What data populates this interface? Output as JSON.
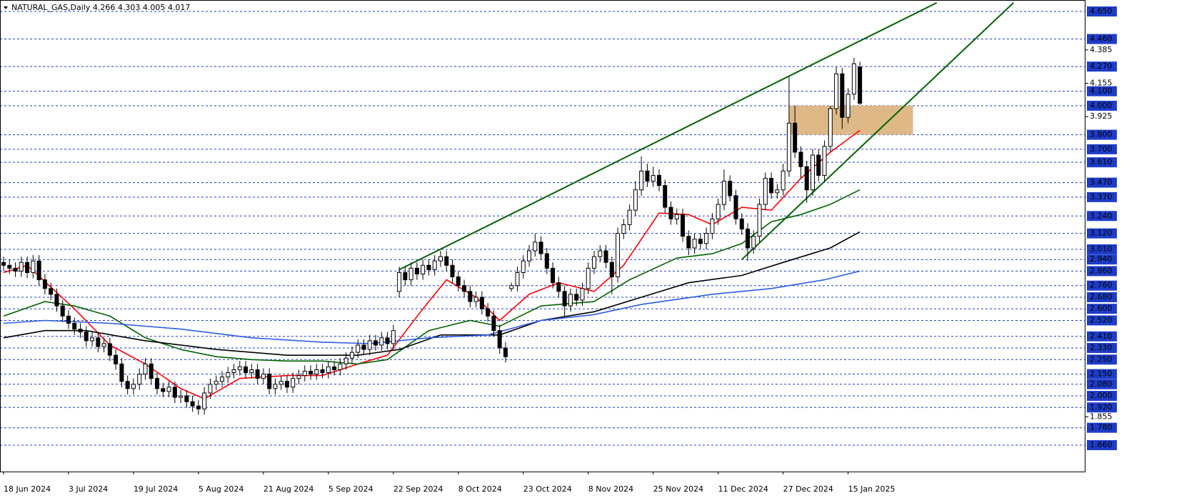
{
  "chart_data": {
    "type": "candlestick",
    "title": "NATURAL_GAS,Daily  4.266 4.303 4.005 4.017",
    "categories": [
      "18 Jun 2024",
      null,
      null,
      null,
      null,
      null,
      null,
      null,
      null,
      null,
      null,
      "3 Jul 2024",
      null,
      null,
      null,
      null,
      null,
      null,
      null,
      null,
      null,
      null,
      "19 Jul 2024",
      null,
      null,
      null,
      null,
      null,
      null,
      null,
      null,
      null,
      null,
      "5 Aug 2024",
      null,
      null,
      null,
      null,
      null,
      null,
      null,
      null,
      null,
      null,
      "21 Aug 2024",
      null,
      null,
      null,
      null,
      null,
      null,
      null,
      null,
      null,
      null,
      "5 Sep 2024",
      null,
      null,
      null,
      null,
      null,
      null,
      null,
      null,
      null,
      null,
      "22 Sep 2024",
      null,
      null,
      null,
      null,
      null,
      null,
      null,
      null,
      null,
      null,
      "8 Oct 2024",
      null,
      null,
      null,
      null,
      null,
      null,
      null,
      null,
      null,
      null,
      "23 Oct 2024",
      null,
      null,
      null,
      null,
      null,
      null,
      null,
      null,
      null,
      null,
      "8 Nov 2024",
      null,
      null,
      null,
      null,
      null,
      null,
      null,
      null,
      null,
      null,
      "25 Nov 2024",
      null,
      null,
      null,
      null,
      null,
      null,
      null,
      null,
      null,
      null,
      "11 Dec 2024",
      null,
      null,
      null,
      null,
      null,
      null,
      null,
      null,
      null,
      null,
      "27 Dec 2024",
      null,
      null,
      null,
      null,
      null,
      null,
      null,
      null,
      null,
      null,
      "15 Jan 2025",
      null,
      null
    ],
    "open": [
      2.92,
      2.9,
      2.88,
      2.86,
      2.92,
      2.85,
      2.93,
      2.8,
      2.74,
      2.7,
      2.62,
      2.55,
      2.5,
      2.46,
      2.44,
      2.38,
      2.4,
      2.34,
      2.36,
      2.28,
      2.22,
      2.1,
      2.05,
      2.08,
      2.15,
      2.22,
      2.12,
      2.05,
      2.03,
      2.06,
      1.99,
      2.0,
      1.96,
      1.93,
      1.91,
      2.02,
      2.08,
      2.1,
      2.13,
      2.16,
      2.18,
      2.2,
      2.16,
      2.18,
      2.12,
      2.15,
      2.05,
      2.08,
      2.1,
      2.06,
      2.12,
      2.14,
      2.17,
      2.15,
      2.18,
      2.16,
      2.2,
      2.18,
      2.22,
      2.26,
      2.3,
      2.35,
      2.32,
      2.38,
      2.35,
      2.4,
      2.36,
      2.72,
      2.85,
      2.8,
      2.88,
      2.84,
      2.9,
      2.87,
      2.93,
      2.96,
      2.9,
      2.82,
      2.76,
      2.72,
      2.65,
      2.68,
      2.6,
      2.55,
      2.45,
      2.33,
      2.74,
      2.76,
      2.85,
      2.93,
      3.0,
      3.06,
      2.98,
      2.88,
      2.78,
      2.72,
      2.62,
      2.7,
      2.66,
      2.74,
      2.88,
      2.96,
      3.0,
      2.92,
      2.82,
      3.12,
      3.18,
      3.28,
      3.42,
      3.55,
      3.48,
      3.52,
      3.45,
      3.3,
      3.22,
      3.25,
      3.1,
      3.02,
      3.08,
      3.05,
      3.12,
      3.22,
      3.32,
      3.48,
      3.38,
      3.22,
      3.15,
      3.02,
      3.1,
      3.32,
      3.5,
      3.4,
      3.42,
      3.55,
      3.88,
      3.68,
      3.58,
      3.42,
      3.66,
      3.52,
      3.72,
      3.98,
      4.22,
      3.92,
      4.08,
      4.266
    ],
    "high": [
      2.96,
      2.94,
      2.92,
      2.96,
      2.96,
      2.97,
      2.97,
      2.84,
      2.78,
      2.74,
      2.66,
      2.59,
      2.54,
      2.5,
      2.48,
      2.44,
      2.44,
      2.4,
      2.4,
      2.32,
      2.26,
      2.14,
      2.12,
      2.19,
      2.26,
      2.26,
      2.16,
      2.09,
      2.1,
      2.1,
      2.04,
      2.04,
      2.0,
      1.97,
      2.06,
      2.12,
      2.14,
      2.17,
      2.2,
      2.22,
      2.24,
      2.24,
      2.22,
      2.22,
      2.19,
      2.19,
      2.12,
      2.14,
      2.14,
      2.16,
      2.18,
      2.21,
      2.21,
      2.22,
      2.22,
      2.24,
      2.24,
      2.26,
      2.3,
      2.34,
      2.39,
      2.39,
      2.42,
      2.42,
      2.44,
      2.44,
      2.49,
      2.89,
      2.89,
      2.92,
      2.92,
      2.94,
      2.94,
      2.97,
      3.0,
      3.0,
      2.94,
      2.86,
      2.8,
      2.76,
      2.72,
      2.72,
      2.64,
      2.59,
      2.49,
      2.37,
      2.78,
      2.89,
      2.97,
      3.04,
      3.12,
      3.1,
      3.02,
      2.92,
      2.82,
      2.76,
      2.74,
      2.74,
      2.78,
      2.92,
      3.0,
      3.04,
      3.04,
      2.96,
      3.16,
      3.22,
      3.32,
      3.48,
      3.65,
      3.6,
      3.58,
      3.56,
      3.49,
      3.34,
      3.29,
      3.29,
      3.14,
      3.12,
      3.12,
      3.16,
      3.26,
      3.36,
      3.56,
      3.52,
      3.42,
      3.26,
      3.19,
      3.14,
      3.36,
      3.54,
      3.54,
      3.46,
      3.6,
      4.2,
      4.0,
      3.72,
      3.62,
      3.7,
      3.7,
      3.76,
      4.0,
      4.27,
      4.26,
      4.12,
      4.33,
      4.303
    ],
    "low": [
      2.86,
      2.84,
      2.82,
      2.82,
      2.81,
      2.81,
      2.76,
      2.7,
      2.66,
      2.58,
      2.51,
      2.46,
      2.42,
      2.4,
      2.34,
      2.34,
      2.3,
      2.3,
      2.24,
      2.18,
      2.06,
      2.01,
      2.01,
      2.04,
      2.11,
      2.08,
      2.01,
      1.99,
      1.99,
      1.95,
      1.95,
      1.92,
      1.89,
      1.87,
      1.87,
      1.98,
      2.04,
      2.06,
      2.09,
      2.12,
      2.14,
      2.12,
      2.12,
      2.08,
      2.08,
      2.01,
      2.01,
      2.04,
      2.02,
      2.02,
      2.08,
      2.1,
      2.11,
      2.11,
      2.12,
      2.12,
      2.14,
      2.14,
      2.18,
      2.22,
      2.26,
      2.28,
      2.28,
      2.31,
      2.31,
      2.32,
      2.32,
      2.68,
      2.76,
      2.76,
      2.8,
      2.8,
      2.83,
      2.83,
      2.89,
      2.86,
      2.78,
      2.72,
      2.68,
      2.61,
      2.61,
      2.56,
      2.51,
      2.41,
      2.29,
      2.23,
      2.72,
      2.72,
      2.81,
      2.89,
      2.96,
      2.94,
      2.84,
      2.74,
      2.68,
      2.55,
      2.58,
      2.62,
      2.62,
      2.7,
      2.84,
      2.92,
      2.88,
      2.7,
      2.78,
      3.08,
      3.14,
      3.24,
      3.38,
      3.44,
      3.44,
      3.41,
      3.26,
      3.18,
      3.18,
      3.06,
      2.97,
      2.98,
      3.01,
      3.01,
      3.08,
      3.18,
      3.28,
      3.34,
      3.18,
      3.11,
      2.93,
      2.98,
      3.06,
      3.28,
      3.36,
      3.36,
      3.38,
      3.51,
      3.64,
      3.5,
      3.33,
      3.38,
      3.48,
      3.48,
      3.68,
      3.94,
      3.84,
      3.88,
      4.04,
      4.005
    ],
    "close": [
      2.9,
      2.88,
      2.86,
      2.92,
      2.85,
      2.93,
      2.8,
      2.74,
      2.7,
      2.62,
      2.55,
      2.5,
      2.46,
      2.44,
      2.38,
      2.4,
      2.34,
      2.36,
      2.28,
      2.22,
      2.1,
      2.05,
      2.08,
      2.15,
      2.22,
      2.12,
      2.05,
      2.03,
      2.06,
      1.99,
      2.0,
      1.96,
      1.93,
      1.91,
      2.02,
      2.08,
      2.1,
      2.13,
      2.16,
      2.18,
      2.2,
      2.16,
      2.18,
      2.12,
      2.15,
      2.05,
      2.08,
      2.1,
      2.06,
      2.12,
      2.14,
      2.17,
      2.15,
      2.18,
      2.16,
      2.2,
      2.18,
      2.22,
      2.26,
      2.3,
      2.35,
      2.32,
      2.38,
      2.35,
      2.4,
      2.36,
      2.45,
      2.85,
      2.8,
      2.88,
      2.84,
      2.9,
      2.87,
      2.93,
      2.96,
      2.9,
      2.82,
      2.76,
      2.72,
      2.65,
      2.68,
      2.6,
      2.55,
      2.45,
      2.33,
      2.27,
      2.76,
      2.85,
      2.93,
      3.0,
      3.06,
      2.98,
      2.88,
      2.78,
      2.72,
      2.62,
      2.7,
      2.66,
      2.74,
      2.88,
      2.96,
      3.0,
      2.92,
      2.82,
      3.12,
      3.18,
      3.28,
      3.42,
      3.55,
      3.48,
      3.52,
      3.45,
      3.3,
      3.22,
      3.25,
      3.1,
      3.02,
      3.08,
      3.05,
      3.12,
      3.22,
      3.32,
      3.48,
      3.38,
      3.22,
      3.15,
      3.02,
      3.1,
      3.32,
      3.5,
      3.4,
      3.42,
      3.55,
      3.88,
      3.68,
      3.58,
      3.42,
      3.66,
      3.52,
      3.72,
      3.98,
      4.22,
      3.92,
      4.08,
      4.29,
      4.017
    ],
    "indicators": [
      {
        "color": "#ff0000",
        "x": [
          0,
          4,
          12,
          18,
          24,
          30,
          34,
          40,
          48,
          54,
          60,
          65,
          71,
          75,
          80,
          84,
          89,
          94,
          100,
          105,
          111,
          116,
          120,
          125,
          130,
          135,
          140,
          145
        ],
        "values": [
          2.85,
          2.9,
          2.6,
          2.35,
          2.22,
          2.05,
          1.98,
          2.12,
          2.14,
          2.14,
          2.22,
          2.28,
          2.6,
          2.8,
          2.68,
          2.52,
          2.7,
          2.78,
          2.72,
          2.9,
          3.26,
          3.25,
          3.18,
          3.3,
          3.28,
          3.5,
          3.68,
          3.83
        ]
      },
      {
        "color": "#006400",
        "x": [
          0,
          7,
          12,
          18,
          24,
          30,
          36,
          42,
          48,
          54,
          60,
          65,
          72,
          79,
          84,
          91,
          100,
          106,
          114,
          120,
          125,
          130,
          135,
          140,
          145
        ],
        "values": [
          2.55,
          2.65,
          2.62,
          2.55,
          2.4,
          2.32,
          2.27,
          2.25,
          2.24,
          2.24,
          2.22,
          2.25,
          2.45,
          2.52,
          2.48,
          2.62,
          2.65,
          2.8,
          2.95,
          2.98,
          3.05,
          3.2,
          3.25,
          3.32,
          3.42
        ]
      },
      {
        "color": "#000000",
        "x": [
          0,
          7,
          14,
          24,
          36,
          48,
          60,
          67,
          74,
          84,
          91,
          100,
          108,
          116,
          125,
          132,
          140,
          145
        ],
        "values": [
          2.4,
          2.45,
          2.45,
          2.38,
          2.32,
          2.28,
          2.28,
          2.32,
          2.42,
          2.42,
          2.52,
          2.58,
          2.68,
          2.78,
          2.83,
          2.92,
          3.02,
          3.13
        ]
      },
      {
        "color": "#2b5ce6",
        "x": [
          0,
          7,
          18,
          30,
          42,
          54,
          62,
          72,
          82,
          91,
          100,
          108,
          120,
          130,
          139,
          145
        ],
        "values": [
          2.5,
          2.52,
          2.5,
          2.46,
          2.4,
          2.37,
          2.36,
          2.4,
          2.42,
          2.52,
          2.56,
          2.63,
          2.7,
          2.74,
          2.8,
          2.86
        ]
      }
    ],
    "trendlines": [
      {
        "color": "#006400",
        "x": [
          67,
          158
        ],
        "values": [
          2.87,
          4.71
        ]
      },
      {
        "color": "#006400",
        "x": [
          125,
          171
        ],
        "values": [
          2.94,
          4.71
        ]
      }
    ],
    "zones": [
      {
        "color": "#deb887",
        "x": [
          133,
          154
        ],
        "values": [
          3.8,
          4.0
        ]
      }
    ],
    "ylim": [
      1.478,
      4.729
    ],
    "yticks": [
      4.385,
      4.155,
      3.925,
      1.855
    ],
    "levels": [
      {
        "value": 4.65,
        "label": "4.650"
      },
      {
        "value": 4.46,
        "label": "4.460"
      },
      {
        "value": 4.27,
        "label": "4.270"
      },
      {
        "value": 4.1,
        "label": "4.100"
      },
      {
        "value": 4.0,
        "label": "4.000"
      },
      {
        "value": 3.8,
        "label": "3.800"
      },
      {
        "value": 3.7,
        "label": "3.700"
      },
      {
        "value": 3.61,
        "label": "3.610"
      },
      {
        "value": 3.47,
        "label": "3.470"
      },
      {
        "value": 3.37,
        "label": "3.370"
      },
      {
        "value": 3.24,
        "label": "3.240"
      },
      {
        "value": 3.12,
        "label": "3.120"
      },
      {
        "value": 3.01,
        "label": "3.010"
      },
      {
        "value": 2.94,
        "label": "2.940"
      },
      {
        "value": 2.86,
        "label": "2.860"
      },
      {
        "value": 2.76,
        "label": "2.760"
      },
      {
        "value": 2.68,
        "label": "2.680"
      },
      {
        "value": 2.6,
        "label": "2.600"
      },
      {
        "value": 2.52,
        "label": "2.520"
      },
      {
        "value": 2.41,
        "label": "2.410"
      },
      {
        "value": 2.33,
        "label": "2.330"
      },
      {
        "value": 2.25,
        "label": "2.250"
      },
      {
        "value": 2.15,
        "label": "2.150"
      },
      {
        "value": 2.08,
        "label": "2.080"
      },
      {
        "value": 2.0,
        "label": "2.000"
      },
      {
        "value": 1.92,
        "label": "1.920"
      },
      {
        "value": 1.78,
        "label": "1.780"
      },
      {
        "value": 1.66,
        "label": "1.660"
      }
    ],
    "level_color": "#1e3cc8"
  }
}
